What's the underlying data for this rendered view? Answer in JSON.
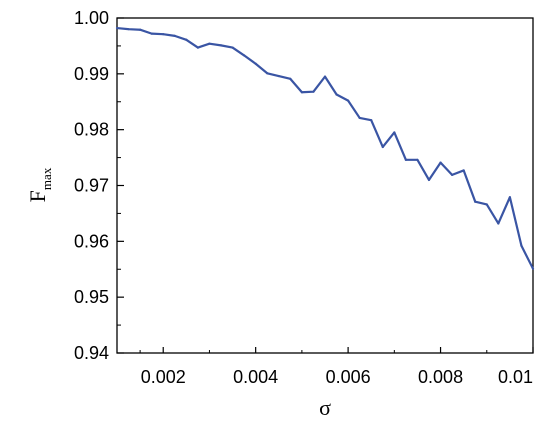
{
  "chart_data": {
    "type": "line",
    "xlabel": "σ",
    "ylabel_main": "F",
    "ylabel_sub": "max",
    "xlim": [
      0.001,
      0.01
    ],
    "ylim": [
      0.94,
      1.0
    ],
    "x_ticks": [
      0.002,
      0.004,
      0.006,
      0.008,
      0.01
    ],
    "x_tick_labels": [
      "0.002",
      "0.004",
      "0.006",
      "0.008",
      "0.01"
    ],
    "y_ticks": [
      0.94,
      0.95,
      0.96,
      0.97,
      0.98,
      0.99,
      1.0
    ],
    "y_tick_labels": [
      "0.94",
      "0.95",
      "0.96",
      "0.97",
      "0.98",
      "0.99",
      "1.00"
    ],
    "grid": false,
    "line_color": "#3a55a4",
    "series": [
      {
        "x": [
          0.001,
          0.00125,
          0.0015,
          0.00175,
          0.002,
          0.00225,
          0.0025,
          0.00275,
          0.003,
          0.00325,
          0.0035,
          0.00375,
          0.004,
          0.00425,
          0.0045,
          0.00475,
          0.005,
          0.00525,
          0.0055,
          0.00575,
          0.006,
          0.00625,
          0.0065,
          0.00675,
          0.007,
          0.00725,
          0.0075,
          0.00775,
          0.008,
          0.00825,
          0.0085,
          0.00875,
          0.009,
          0.00925,
          0.0095,
          0.00975,
          0.01
        ],
        "y": [
          0.9982,
          0.998,
          0.9979,
          0.9972,
          0.9971,
          0.9968,
          0.9961,
          0.9947,
          0.9954,
          0.9951,
          0.9947,
          0.9933,
          0.9918,
          0.9901,
          0.9896,
          0.9891,
          0.9867,
          0.9868,
          0.9895,
          0.9863,
          0.9852,
          0.9821,
          0.9817,
          0.9769,
          0.9795,
          0.9746,
          0.9746,
          0.971,
          0.9741,
          0.9719,
          0.9727,
          0.9671,
          0.9666,
          0.9632,
          0.9679,
          0.9592,
          0.9551
        ]
      }
    ]
  }
}
